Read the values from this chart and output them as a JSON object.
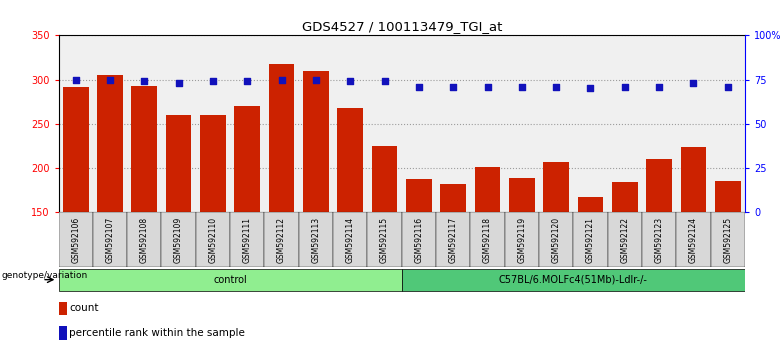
{
  "title": "GDS4527 / 100113479_TGI_at",
  "samples": [
    "GSM592106",
    "GSM592107",
    "GSM592108",
    "GSM592109",
    "GSM592110",
    "GSM592111",
    "GSM592112",
    "GSM592113",
    "GSM592114",
    "GSM592115",
    "GSM592116",
    "GSM592117",
    "GSM592118",
    "GSM592119",
    "GSM592120",
    "GSM592121",
    "GSM592122",
    "GSM592123",
    "GSM592124",
    "GSM592125"
  ],
  "counts": [
    292,
    305,
    293,
    260,
    260,
    270,
    318,
    310,
    268,
    225,
    188,
    182,
    201,
    189,
    207,
    167,
    184,
    210,
    224,
    185
  ],
  "percentiles": [
    75,
    75,
    74,
    73,
    74,
    74,
    75,
    75,
    74,
    74,
    71,
    71,
    71,
    71,
    71,
    70,
    71,
    71,
    73,
    71
  ],
  "groups": [
    {
      "label": "control",
      "start": 0,
      "end": 9,
      "color": "#90ee90"
    },
    {
      "label": "C57BL/6.MOLFc4(51Mb)-Ldlr-/-",
      "start": 10,
      "end": 19,
      "color": "#50c878"
    }
  ],
  "ylim_left": [
    150,
    350
  ],
  "ylim_right": [
    0,
    100
  ],
  "yticks_left": [
    150,
    200,
    250,
    300,
    350
  ],
  "yticks_right": [
    0,
    25,
    50,
    75,
    100
  ],
  "ytick_labels_right": [
    "0",
    "25",
    "50",
    "75",
    "100%"
  ],
  "bar_color": "#cc2200",
  "dot_color": "#1111bb",
  "grid_color": "#000000",
  "grid_alpha": 0.35,
  "bg_color": "#d8d8d8",
  "plot_bg": "#f0f0f0",
  "legend_count_label": "count",
  "legend_pct_label": "percentile rank within the sample",
  "genotype_label": "genotype/variation"
}
